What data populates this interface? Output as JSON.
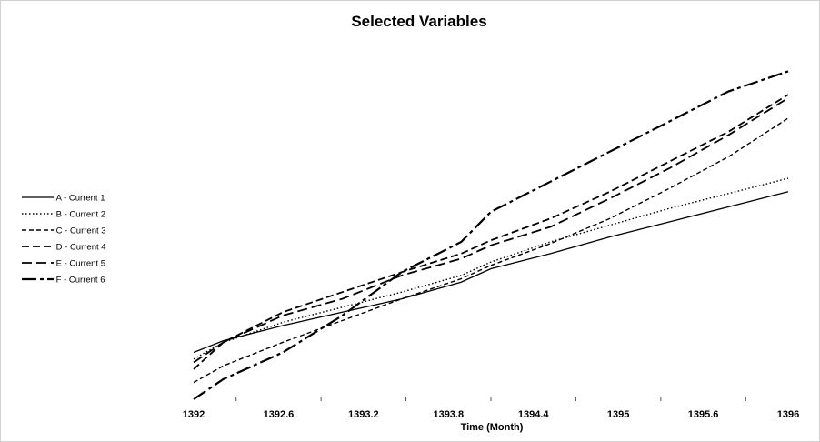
{
  "chart_data": {
    "type": "line",
    "title": "Selected Variables",
    "xlabel": "Time (Month)",
    "ylabel": "",
    "xlim": [
      1392,
      1396
    ],
    "ylim": [
      0,
      100
    ],
    "x_ticks": [
      "1392",
      "1392.6",
      "1393.2",
      "1393.8",
      "1394.4",
      "1395",
      "1395.6",
      "1396"
    ],
    "grid": false,
    "legend_position": "left",
    "series": [
      {
        "name": ":A - Current 1",
        "dash": "solid",
        "x": [
          1392,
          1392.2,
          1392.6,
          1393,
          1393.4,
          1393.8,
          1394,
          1394.4,
          1394.8,
          1395.2,
          1395.6,
          1396
        ],
        "y": [
          14,
          17.5,
          22,
          26,
          30,
          35,
          39,
          43.5,
          48.5,
          53,
          57.5,
          62
        ]
      },
      {
        "name": ":B - Current 2",
        "dash": "dot",
        "x": [
          1392,
          1392.2,
          1392.6,
          1393,
          1393.4,
          1393.8,
          1394,
          1394.4,
          1394.8,
          1395.2,
          1395.6,
          1396
        ],
        "y": [
          12,
          17,
          23,
          27.5,
          32,
          37,
          41,
          47,
          52,
          57,
          61.5,
          66
        ]
      },
      {
        "name": ":C - Current 3",
        "dash": "short-dash",
        "x": [
          1392,
          1392.2,
          1392.6,
          1393,
          1393.4,
          1393.8,
          1394,
          1394.4,
          1394.8,
          1395.2,
          1395.6,
          1396
        ],
        "y": [
          5,
          10,
          17,
          23.5,
          30,
          36,
          40,
          46.5,
          54,
          63,
          72.5,
          84
        ]
      },
      {
        "name": ":D - Current 4",
        "dash": "dash",
        "x": [
          1392,
          1392.2,
          1392.6,
          1393,
          1393.4,
          1393.8,
          1394,
          1394.4,
          1394.8,
          1395.2,
          1395.6,
          1396
        ],
        "y": [
          9,
          17,
          26,
          32,
          38,
          43.5,
          47.5,
          54,
          62,
          71,
          80,
          91
        ]
      },
      {
        "name": ":E - Current 5",
        "dash": "long-dash",
        "x": [
          1392,
          1392.2,
          1392.6,
          1393,
          1393.4,
          1393.8,
          1394,
          1394.4,
          1394.8,
          1395.2,
          1395.6,
          1396
        ],
        "y": [
          11,
          17,
          25,
          30,
          37,
          42,
          46,
          51.5,
          60,
          69,
          79,
          90
        ]
      },
      {
        "name": ":F - Current 6",
        "dash": "dash-dot",
        "x": [
          1392,
          1392.2,
          1392.6,
          1393,
          1393.4,
          1393.8,
          1394,
          1394.4,
          1394.8,
          1395.2,
          1395.6,
          1396
        ],
        "y": [
          0,
          6,
          14,
          25,
          38,
          47,
          56,
          65,
          74,
          83,
          92,
          98
        ]
      }
    ]
  }
}
